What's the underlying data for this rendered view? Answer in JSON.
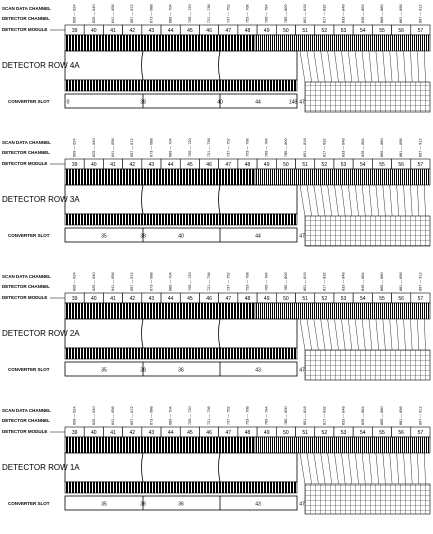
{
  "labels": {
    "scan_data_channel": "SCAN DATA CHANNEL",
    "detector_channel": "DETECTOR CHANNEL",
    "detector_module": "DETECTOR MODULE",
    "converter_slot": "CONVERTER SLOT"
  },
  "modules": [
    "39",
    "40",
    "41",
    "42",
    "43",
    "44",
    "45",
    "46",
    "47",
    "48",
    "49",
    "50",
    "51",
    "52",
    "53",
    "54",
    "55",
    "56",
    "57"
  ],
  "channel_labels": [
    "609 — 624",
    "625 — 640",
    "641 — 656",
    "657 — 672",
    "673 — 688",
    "689 — 704",
    "705 — 720",
    "721 — 736",
    "737 — 752",
    "753 — 768",
    "769 — 784",
    "785 — 800",
    "801 — 816",
    "817 — 832",
    "833 — 848",
    "849 — 864",
    "865 — 880",
    "881 — 896",
    "897 — 912"
  ],
  "panels": [
    {
      "row_label": "DETECTOR ROW 4A",
      "converter_labels": [
        "0",
        "",
        "38",
        "",
        "40",
        "44",
        "148",
        "47"
      ]
    },
    {
      "row_label": "DETECTOR ROW 3A",
      "converter_labels": [
        "",
        "35",
        "38",
        "40",
        "",
        "44",
        "",
        "47"
      ]
    },
    {
      "row_label": "DETECTOR ROW 2A",
      "converter_labels": [
        "",
        "35",
        "38",
        "36",
        "",
        "43",
        "",
        "47"
      ]
    },
    {
      "row_label": "DETECTOR ROW 1A",
      "converter_labels": [
        "",
        "35",
        "38",
        "36",
        "",
        "43",
        "",
        "47"
      ]
    }
  ]
}
